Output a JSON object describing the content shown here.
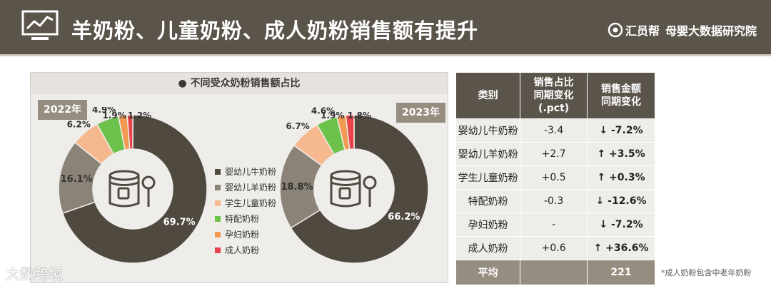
{
  "header": {
    "title": "羊奶粉、儿童奶粉、成人奶粉销售额有提升",
    "brand_logo": "汇员帮",
    "brand_sub": "母婴大数据研究院"
  },
  "panel": {
    "title": "● 不同受众奶粉销售额占比",
    "years": [
      "2022年",
      "2023年"
    ]
  },
  "chart_data": [
    {
      "type": "pie",
      "title": "2022年",
      "categories": [
        "婴幼儿牛奶粉",
        "婴幼儿羊奶粉",
        "学生儿童奶粉",
        "特配奶粉",
        "孕妇奶粉",
        "成人奶粉"
      ],
      "values": [
        69.7,
        16.1,
        6.2,
        4.9,
        1.9,
        1.2
      ],
      "labels": [
        "69.7%",
        "16.1%",
        "6.2%",
        "4.9%",
        "1.9%",
        "1.2%"
      ]
    },
    {
      "type": "pie",
      "title": "2023年",
      "categories": [
        "婴幼儿牛奶粉",
        "婴幼儿羊奶粉",
        "学生儿童奶粉",
        "特配奶粉",
        "孕妇奶粉",
        "成人奶粉"
      ],
      "values": [
        66.2,
        18.8,
        6.7,
        4.6,
        1.9,
        1.8
      ],
      "labels": [
        "66.2%",
        "18.8%",
        "6.7%",
        "4.6%",
        "1.9%",
        "1.8%"
      ]
    }
  ],
  "legend": [
    "婴幼儿牛奶粉",
    "婴幼儿羊奶粉",
    "学生儿童奶粉",
    "特配奶粉",
    "孕妇奶粉",
    "成人奶粉"
  ],
  "colors": [
    "#4f4940",
    "#8b8378",
    "#f6b98f",
    "#6cc24a",
    "#f29a52",
    "#e8424b"
  ],
  "table": {
    "headers": [
      "类别",
      "销售占比\n同期变化\n(.pct)",
      "销售金额\n同期变化"
    ],
    "rows": [
      {
        "category": "婴幼儿牛奶粉",
        "pct": "-3.4",
        "amount": "↓ -7.2%",
        "dir": "down"
      },
      {
        "category": "婴幼儿羊奶粉",
        "pct": "+2.7",
        "amount": "↑ +3.5%",
        "dir": "up"
      },
      {
        "category": "学生儿童奶粉",
        "pct": "+0.5",
        "amount": "↑ +0.3%",
        "dir": "up"
      },
      {
        "category": "特配奶粉",
        "pct": "-0.3",
        "amount": "↓ -12.6%",
        "dir": "down"
      },
      {
        "category": "孕妇奶粉",
        "pct": "-",
        "amount": "↓ -7.2%",
        "dir": "down"
      },
      {
        "category": "成人奶粉",
        "pct": "+0.6",
        "amount": "↑ +36.6%",
        "dir": "up"
      }
    ],
    "avg_label": "平均",
    "avg_pct": "",
    "avg_amount": "221"
  },
  "note": "*成人奶粉包含中老年奶粉",
  "watermark": "大数跨境"
}
